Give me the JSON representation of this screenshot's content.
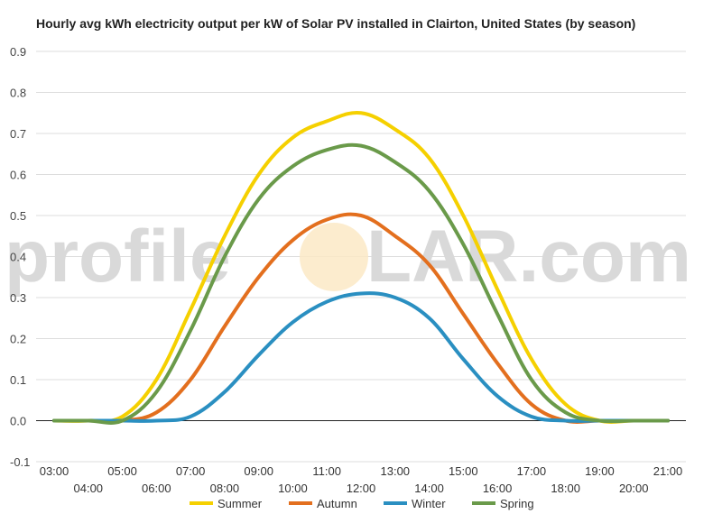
{
  "chart_data": {
    "type": "line",
    "title": "Hourly avg kWh electricity output per kW of Solar PV installed in Clairton, United States (by season)",
    "xlabel": "",
    "ylabel": "",
    "ylim": [
      -0.1,
      0.9
    ],
    "yticks": [
      "-0.1",
      "0.0",
      "0.1",
      "0.2",
      "0.3",
      "0.4",
      "0.5",
      "0.6",
      "0.7",
      "0.8",
      "0.9"
    ],
    "x": [
      "03:00",
      "04:00",
      "05:00",
      "06:00",
      "07:00",
      "08:00",
      "09:00",
      "10:00",
      "11:00",
      "12:00",
      "13:00",
      "14:00",
      "15:00",
      "16:00",
      "17:00",
      "18:00",
      "19:00",
      "20:00",
      "21:00"
    ],
    "grid": true,
    "legend_position": "bottom",
    "series": [
      {
        "name": "Summer",
        "color": "#f5d000",
        "values": [
          0.0,
          0.0,
          0.01,
          0.1,
          0.27,
          0.45,
          0.6,
          0.69,
          0.73,
          0.75,
          0.71,
          0.64,
          0.5,
          0.32,
          0.15,
          0.04,
          0.0,
          0.0,
          0.0
        ]
      },
      {
        "name": "Autumn",
        "color": "#e36f1e",
        "values": [
          0.0,
          0.0,
          0.0,
          0.02,
          0.1,
          0.23,
          0.35,
          0.44,
          0.49,
          0.5,
          0.45,
          0.38,
          0.26,
          0.14,
          0.04,
          0.0,
          0.0,
          0.0,
          0.0
        ]
      },
      {
        "name": "Winter",
        "color": "#2a8fc1",
        "values": [
          0.0,
          0.0,
          0.0,
          0.0,
          0.01,
          0.07,
          0.16,
          0.24,
          0.29,
          0.31,
          0.3,
          0.25,
          0.15,
          0.06,
          0.01,
          0.0,
          0.0,
          0.0,
          0.0
        ]
      },
      {
        "name": "Spring",
        "color": "#6a9a4a",
        "values": [
          0.0,
          0.0,
          0.0,
          0.07,
          0.22,
          0.4,
          0.54,
          0.62,
          0.66,
          0.67,
          0.63,
          0.56,
          0.43,
          0.26,
          0.1,
          0.02,
          0.0,
          0.0,
          0.0
        ]
      }
    ]
  },
  "watermark": {
    "left": "profile",
    "right": "LAR.com"
  }
}
